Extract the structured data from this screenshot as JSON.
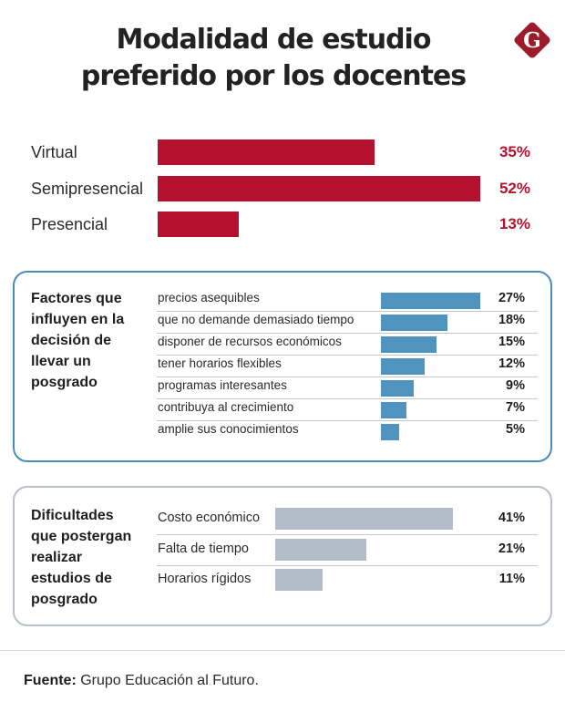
{
  "title_lines": [
    "Modalidad de estudio",
    "preferido por los docentes"
  ],
  "logo": {
    "icon": "diamond-g-logo-icon",
    "letter": "G",
    "color": "#9b1b2a"
  },
  "colors": {
    "main_bar": "#b5102d",
    "factor_bar": "#4f93bf",
    "difficulty_bar": "#b3bcc9",
    "factor_border": "#4b8db8",
    "difficulty_border": "#b8bfc9"
  },
  "chart_data": [
    {
      "type": "bar",
      "orientation": "horizontal",
      "title": "Modalidad de estudio preferido por los docentes",
      "categories": [
        "Virtual",
        "Semipresencial",
        "Presencial"
      ],
      "values": [
        35,
        52,
        13
      ],
      "labels": [
        "35%",
        "52%",
        "13%"
      ],
      "unit": "%",
      "xlim": [
        0,
        52
      ]
    },
    {
      "type": "bar",
      "orientation": "horizontal",
      "title": "Factores que influyen en la decisión de llevar un posgrado",
      "categories": [
        "precios asequibles",
        "que no demande demasiado tiempo",
        "disponer de recursos económicos",
        "tener horarios flexibles",
        "programas interesantes",
        "contribuya al crecimiento",
        "amplie sus conocimientos"
      ],
      "values": [
        27,
        18,
        15,
        12,
        9,
        7,
        5
      ],
      "labels": [
        "27%",
        "18%",
        "15%",
        "12%",
        "9%",
        "7%",
        "5%"
      ],
      "unit": "%",
      "xlim": [
        0,
        27
      ]
    },
    {
      "type": "bar",
      "orientation": "horizontal",
      "title": "Dificultades que postergan realizar estudios de posgrado",
      "categories": [
        "Costo económico",
        "Falta de tiempo",
        "Horarios rígidos"
      ],
      "values": [
        41,
        21,
        11
      ],
      "labels": [
        "41%",
        "21%",
        "11%"
      ],
      "unit": "%",
      "xlim": [
        0,
        41
      ]
    }
  ],
  "factors_title_lines": [
    "Factores que",
    "influyen en la",
    "decisión de",
    "llevar un",
    "posgrado"
  ],
  "difficulties_title_lines": [
    "Dificultades",
    "que postergan",
    "realizar",
    "estudios de",
    "posgrado"
  ],
  "source": {
    "label": "Fuente:",
    "text": " Grupo Educación al Futuro."
  }
}
